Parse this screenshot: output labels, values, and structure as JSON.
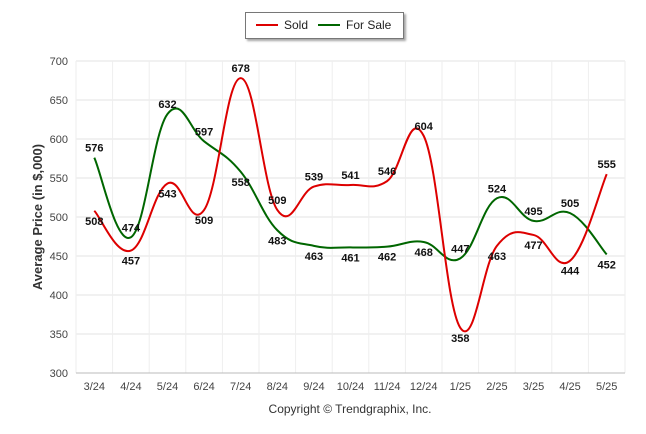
{
  "chart_data": {
    "type": "line",
    "categories": [
      "3/24",
      "4/24",
      "5/24",
      "6/24",
      "7/24",
      "8/24",
      "9/24",
      "10/24",
      "11/24",
      "12/24",
      "1/25",
      "2/25",
      "3/25",
      "4/25",
      "5/25"
    ],
    "series": [
      {
        "name": "Sold",
        "color": "#dd0000",
        "values": [
          508,
          457,
          543,
          509,
          678,
          509,
          539,
          541,
          546,
          604,
          358,
          463,
          477,
          444,
          555
        ]
      },
      {
        "name": "For Sale",
        "color": "#006600",
        "values": [
          576,
          474,
          632,
          597,
          558,
          483,
          463,
          461,
          462,
          468,
          447,
          524,
          495,
          505,
          452
        ]
      }
    ],
    "ylabel": "Average Price (in $,000)",
    "xlabel": "",
    "ylim": [
      300,
      700
    ],
    "yticks": [
      300,
      350,
      400,
      450,
      500,
      550,
      600,
      650,
      700
    ],
    "grid": true,
    "legend_position": "top-center"
  },
  "footer": {
    "copyright": "Copyright © Trendgraphix, Inc."
  }
}
